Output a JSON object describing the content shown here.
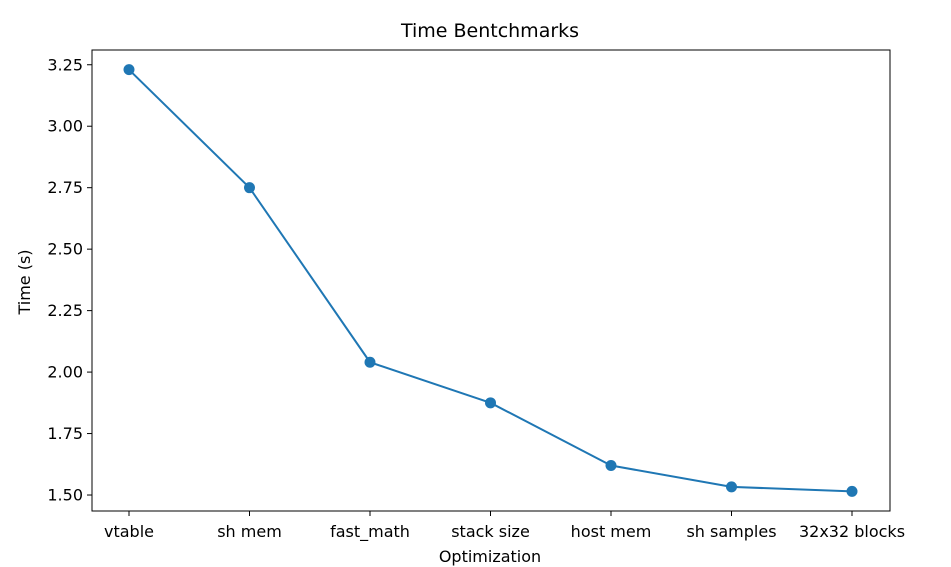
{
  "chart_data": {
    "type": "line",
    "title": "Time Bentchmarks",
    "xlabel": "Optimization",
    "ylabel": "Time (s)",
    "categories": [
      "vtable",
      "sh mem",
      "fast_math",
      "stack size",
      "host mem",
      "sh samples",
      "32x32 blocks"
    ],
    "series": [
      {
        "values": [
          3.23,
          2.75,
          2.04,
          1.875,
          1.62,
          1.533,
          1.515
        ],
        "color": "#1f77b4",
        "marker": "circle"
      }
    ],
    "ylim": [
      1.435,
      3.31
    ],
    "yticks": [
      1.5,
      1.75,
      2.0,
      2.25,
      2.5,
      2.75,
      3.0,
      3.25
    ],
    "ytick_labels": [
      "1.50",
      "1.75",
      "2.00",
      "2.25",
      "2.50",
      "2.75",
      "3.00",
      "3.25"
    ],
    "grid": false,
    "legend": false
  }
}
